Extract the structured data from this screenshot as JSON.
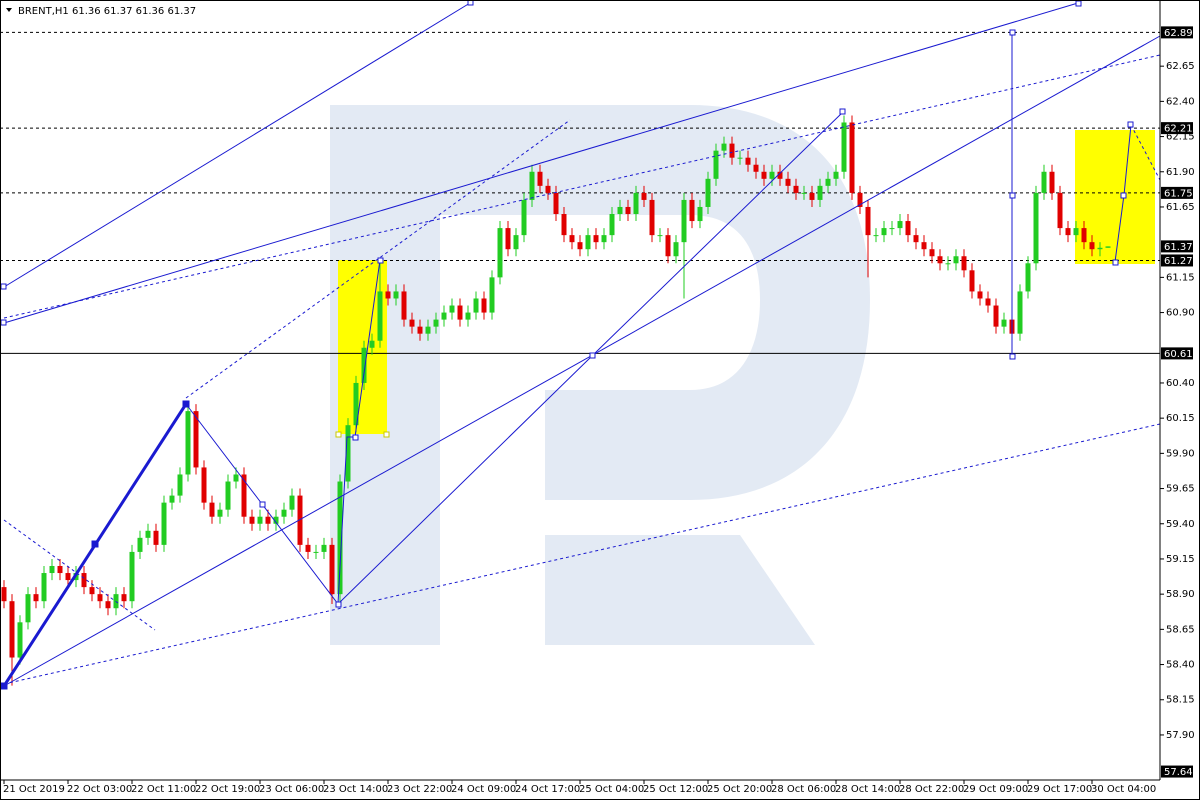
{
  "chart_data": {
    "type": "candlestick",
    "symbol": "BRENT,H1",
    "categories": [
      "21 Oct 2019",
      null,
      null,
      null,
      null,
      null,
      null,
      null,
      "22 Oct 03:00",
      null,
      null,
      null,
      null,
      null,
      null,
      null,
      "22 Oct 11:00",
      null,
      null,
      null,
      null,
      null,
      null,
      null,
      "22 Oct 19:00",
      null,
      null,
      null,
      null,
      null,
      null,
      null,
      "23 Oct 06:00",
      null,
      null,
      null,
      null,
      null,
      null,
      null,
      "23 Oct 14:00",
      null,
      null,
      null,
      null,
      null,
      null,
      null,
      "23 Oct 22:00",
      null,
      null,
      null,
      null,
      null,
      null,
      null,
      "24 Oct 09:00",
      null,
      null,
      null,
      null,
      null,
      null,
      null,
      "24 Oct 17:00",
      null,
      null,
      null,
      null,
      null,
      null,
      null,
      "25 Oct 04:00",
      null,
      null,
      null,
      null,
      null,
      null,
      null,
      "25 Oct 12:00",
      null,
      null,
      null,
      null,
      null,
      null,
      null,
      "25 Oct 20:00",
      null,
      null,
      null,
      null,
      null,
      null,
      null,
      "28 Oct 06:00",
      null,
      null,
      null,
      null,
      null,
      null,
      null,
      "28 Oct 14:00",
      null,
      null,
      null,
      null,
      null,
      null,
      null,
      "28 Oct 22:00",
      null,
      null,
      null,
      null,
      null,
      null,
      null,
      "29 Oct 09:00",
      null,
      null,
      null,
      null,
      null,
      null,
      null,
      "29 Oct 17:00",
      null,
      null,
      null,
      null,
      null,
      null,
      null,
      "30 Oct 04:00",
      null,
      null
    ],
    "open": [
      58.95,
      58.85,
      58.45,
      58.7,
      58.9,
      58.85,
      59.05,
      59.1,
      59.05,
      59.0,
      59.05,
      58.95,
      58.9,
      58.85,
      58.8,
      58.9,
      58.85,
      59.2,
      59.3,
      59.35,
      59.25,
      59.55,
      59.6,
      59.75,
      60.2,
      59.8,
      59.55,
      59.45,
      59.5,
      59.7,
      59.75,
      59.45,
      59.4,
      59.45,
      59.4,
      59.45,
      59.5,
      59.6,
      59.25,
      59.2,
      59.2,
      59.25,
      58.9,
      59.7,
      60.1,
      60.4,
      60.65,
      60.7,
      61.05,
      61.0,
      61.05,
      60.85,
      60.8,
      60.75,
      60.8,
      60.85,
      60.9,
      60.95,
      60.85,
      60.9,
      61.0,
      60.9,
      61.15,
      61.5,
      61.35,
      61.45,
      61.7,
      61.9,
      61.8,
      61.75,
      61.6,
      61.45,
      61.4,
      61.35,
      61.45,
      61.4,
      61.45,
      61.6,
      61.65,
      61.6,
      61.75,
      61.7,
      61.45,
      61.45,
      61.3,
      61.4,
      61.7,
      61.55,
      61.65,
      61.85,
      62.05,
      62.1,
      62.0,
      62.0,
      61.95,
      61.9,
      61.85,
      61.9,
      61.85,
      61.8,
      61.75,
      61.75,
      61.7,
      61.8,
      61.85,
      61.9,
      62.25,
      61.75,
      61.65,
      61.45,
      61.45,
      61.5,
      61.5,
      61.55,
      61.45,
      61.4,
      61.35,
      61.3,
      61.25,
      61.25,
      61.3,
      61.2,
      61.05,
      61.0,
      60.95,
      60.8,
      60.85,
      60.75,
      61.05,
      61.25,
      61.75,
      61.9,
      61.75,
      61.5,
      61.45,
      61.5,
      61.4,
      61.35,
      61.36
    ],
    "high": [
      59.0,
      58.9,
      58.75,
      58.95,
      58.95,
      59.1,
      59.15,
      59.15,
      59.1,
      59.1,
      59.1,
      59.0,
      58.95,
      58.9,
      58.95,
      58.95,
      59.25,
      59.35,
      59.4,
      59.4,
      59.6,
      59.65,
      59.8,
      60.25,
      60.25,
      59.85,
      59.6,
      59.55,
      59.75,
      59.8,
      59.8,
      59.5,
      59.5,
      59.5,
      59.5,
      59.55,
      59.65,
      59.65,
      59.3,
      59.25,
      59.3,
      59.3,
      59.75,
      60.15,
      60.45,
      60.7,
      60.75,
      61.27,
      61.1,
      61.1,
      61.1,
      60.9,
      60.85,
      60.85,
      60.9,
      60.95,
      61.0,
      61.0,
      60.95,
      61.05,
      61.05,
      61.2,
      61.55,
      61.55,
      61.5,
      61.75,
      61.95,
      61.95,
      61.85,
      61.8,
      61.65,
      61.5,
      61.45,
      61.5,
      61.5,
      61.5,
      61.65,
      61.7,
      61.7,
      61.8,
      61.8,
      61.75,
      61.5,
      61.5,
      61.45,
      61.75,
      61.75,
      61.7,
      61.9,
      62.1,
      62.15,
      62.15,
      62.05,
      62.05,
      62.0,
      61.95,
      61.95,
      61.95,
      61.9,
      61.85,
      61.8,
      61.8,
      61.85,
      61.9,
      61.95,
      62.3,
      62.3,
      61.8,
      61.7,
      61.5,
      61.55,
      61.55,
      61.6,
      61.6,
      61.5,
      61.45,
      61.4,
      61.35,
      61.3,
      61.35,
      61.35,
      61.25,
      61.1,
      61.05,
      61.0,
      60.9,
      60.9,
      61.1,
      61.3,
      61.8,
      61.95,
      61.95,
      61.8,
      61.55,
      61.55,
      61.55,
      61.45,
      61.4,
      61.37
    ],
    "low": [
      58.8,
      58.25,
      58.4,
      58.65,
      58.8,
      58.8,
      59.0,
      59.0,
      58.95,
      58.95,
      58.9,
      58.85,
      58.8,
      58.75,
      58.75,
      58.8,
      58.8,
      59.15,
      59.25,
      59.2,
      59.2,
      59.5,
      59.55,
      59.7,
      59.75,
      59.5,
      59.4,
      59.4,
      59.45,
      59.65,
      59.4,
      59.35,
      59.35,
      59.35,
      59.35,
      59.4,
      59.45,
      59.2,
      59.15,
      59.15,
      59.15,
      58.83,
      58.85,
      59.65,
      60.05,
      60.35,
      60.6,
      60.65,
      60.95,
      60.95,
      60.8,
      60.75,
      60.7,
      60.7,
      60.75,
      60.8,
      60.85,
      60.8,
      60.8,
      60.85,
      60.85,
      60.85,
      61.1,
      61.3,
      61.3,
      61.4,
      61.65,
      61.75,
      61.7,
      61.55,
      61.4,
      61.35,
      61.3,
      61.3,
      61.35,
      61.35,
      61.4,
      61.55,
      61.55,
      61.55,
      61.65,
      61.4,
      61.4,
      61.25,
      61.25,
      61.0,
      61.5,
      61.5,
      61.6,
      61.8,
      62.0,
      61.95,
      61.95,
      61.9,
      61.85,
      61.8,
      61.8,
      61.8,
      61.75,
      61.7,
      61.7,
      61.65,
      61.65,
      61.75,
      61.8,
      61.85,
      61.7,
      61.6,
      61.15,
      61.4,
      61.4,
      61.45,
      61.45,
      61.4,
      61.35,
      61.3,
      61.25,
      61.2,
      61.2,
      61.2,
      61.15,
      61.0,
      60.95,
      60.9,
      60.75,
      60.75,
      60.61,
      60.7,
      61.0,
      61.2,
      61.7,
      61.7,
      61.45,
      61.4,
      61.4,
      61.35,
      61.3,
      61.3,
      61.36
    ],
    "close": [
      58.85,
      58.45,
      58.7,
      58.9,
      58.85,
      59.05,
      59.1,
      59.05,
      59.0,
      59.05,
      58.95,
      58.9,
      58.85,
      58.8,
      58.9,
      58.85,
      59.2,
      59.3,
      59.35,
      59.25,
      59.55,
      59.6,
      59.75,
      60.2,
      59.8,
      59.55,
      59.45,
      59.5,
      59.7,
      59.75,
      59.45,
      59.4,
      59.45,
      59.4,
      59.45,
      59.5,
      59.6,
      59.25,
      59.2,
      59.2,
      59.25,
      58.9,
      59.7,
      60.1,
      60.4,
      60.65,
      60.7,
      61.05,
      61.0,
      61.05,
      60.85,
      60.8,
      60.75,
      60.8,
      60.85,
      60.9,
      60.95,
      60.85,
      60.9,
      61.0,
      60.9,
      61.15,
      61.5,
      61.35,
      61.45,
      61.7,
      61.9,
      61.8,
      61.75,
      61.6,
      61.45,
      61.4,
      61.35,
      61.45,
      61.4,
      61.45,
      61.6,
      61.65,
      61.6,
      61.75,
      61.7,
      61.45,
      61.45,
      61.3,
      61.4,
      61.7,
      61.55,
      61.65,
      61.85,
      62.05,
      62.1,
      62.0,
      62.0,
      61.95,
      61.9,
      61.85,
      61.9,
      61.85,
      61.8,
      61.75,
      61.75,
      61.7,
      61.8,
      61.85,
      61.9,
      62.25,
      61.75,
      61.65,
      61.45,
      61.45,
      61.5,
      61.5,
      61.55,
      61.45,
      61.4,
      61.35,
      61.3,
      61.25,
      61.25,
      61.3,
      61.2,
      61.05,
      61.0,
      60.95,
      60.8,
      60.85,
      60.75,
      61.05,
      61.25,
      61.75,
      61.9,
      61.75,
      61.5,
      61.45,
      61.5,
      61.4,
      61.35,
      61.36,
      61.37
    ],
    "up_color": "#22cc22",
    "down_color": "#e00000",
    "ylim": [
      57.58,
      63.12
    ],
    "yticks": [
      62.65,
      {
        "value": 62.4,
        "label": "62.40"
      },
      62.15,
      {
        "value": 61.9,
        "label": "61.90"
      },
      61.65,
      61.15,
      {
        "value": 60.9,
        "label": "60.90"
      },
      {
        "value": 60.4,
        "label": "60.40"
      },
      60.15,
      {
        "value": 59.9,
        "label": "59.90"
      },
      59.65,
      {
        "value": 59.4,
        "label": "59.40"
      },
      59.15,
      {
        "value": 58.9,
        "label": "58.90"
      },
      58.65,
      {
        "value": 58.4,
        "label": "58.40"
      },
      58.15,
      {
        "value": 57.9,
        "label": "57.90"
      }
    ],
    "levels": [
      62.89,
      62.21,
      61.75,
      61.27
    ],
    "solid_levels": [
      60.61
    ],
    "price_boxes": [
      61.37,
      57.64
    ]
  }
}
